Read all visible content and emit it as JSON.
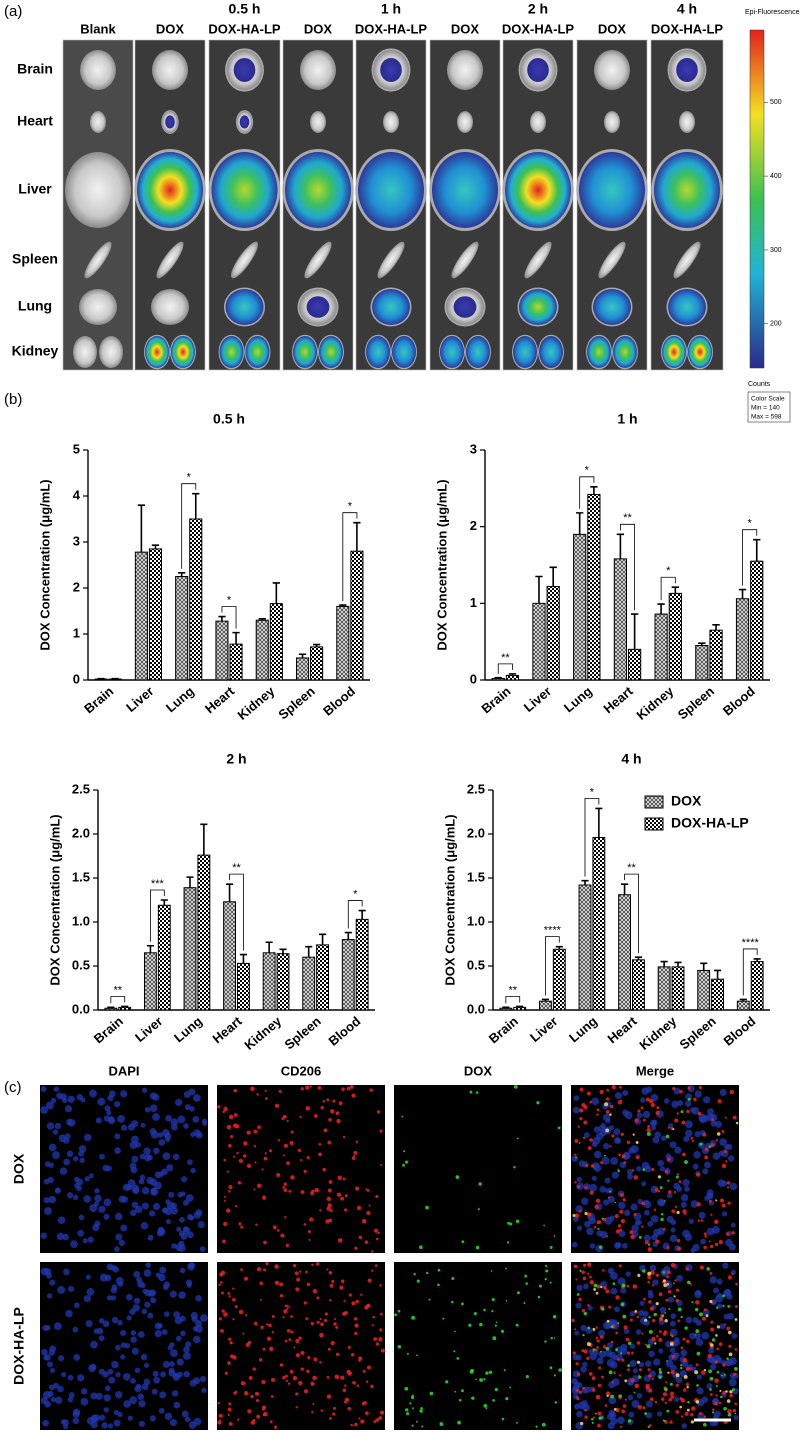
{
  "panel_labels": [
    "(a)",
    "(b)",
    "(c)"
  ],
  "imaging": {
    "time_points": [
      "0.5 h",
      "1 h",
      "2 h",
      "4 h"
    ],
    "groups": [
      "Blank",
      "DOX",
      "DOX-HA-LP",
      "DOX",
      "DOX-HA-LP",
      "DOX",
      "DOX-HA-LP",
      "DOX",
      "DOX-HA-LP"
    ],
    "organs": [
      "Brain",
      "Heart",
      "Liver",
      "Spleen",
      "Lung",
      "Kidney"
    ],
    "colorbar": {
      "title": "Epi-Fluorescence",
      "ticks": [
        200,
        300,
        400,
        500
      ],
      "lim": [
        140,
        598
      ],
      "unit": "Counts",
      "scale_title": "Color Scale",
      "min_label": "Min = 140",
      "max_label": "Max = 598"
    }
  },
  "chart_data": [
    {
      "type": "bar",
      "title": "0.5 h",
      "ylabel": "DOX Concentration (μg/mL)",
      "categories": [
        "Brain",
        "Liver",
        "Lung",
        "Heart",
        "Kidney",
        "Spleen",
        "Blood"
      ],
      "series": [
        {
          "pattern": "crosshatch",
          "color": "#555555",
          "values": [
            0.02,
            2.78,
            2.25,
            1.28,
            1.3,
            0.48,
            1.6
          ],
          "errors": [
            0.01,
            1.02,
            0.08,
            0.1,
            0.03,
            0.08,
            0.03
          ]
        },
        {
          "pattern": "checker",
          "color": "#000000",
          "values": [
            0.02,
            2.85,
            3.5,
            0.78,
            1.66,
            0.72,
            2.8
          ],
          "errors": [
            0.01,
            0.08,
            0.55,
            0.25,
            0.45,
            0.05,
            0.62
          ]
        }
      ],
      "annotations": [
        null,
        null,
        "*",
        "*",
        null,
        null,
        "*"
      ],
      "ylim": [
        0,
        5
      ],
      "yticks": [
        0,
        1,
        2,
        3,
        4,
        5
      ],
      "legend": false
    },
    {
      "type": "bar",
      "title": "1 h",
      "ylabel": "DOX Concentration (μg/mL)",
      "categories": [
        "Brain",
        "Liver",
        "Lung",
        "Heart",
        "Kidney",
        "Spleen",
        "Blood"
      ],
      "series": [
        {
          "pattern": "crosshatch",
          "color": "#555555",
          "values": [
            0.02,
            1.0,
            1.9,
            1.58,
            0.86,
            0.45,
            1.06
          ],
          "errors": [
            0.01,
            0.35,
            0.28,
            0.32,
            0.13,
            0.03,
            0.12
          ]
        },
        {
          "pattern": "checker",
          "color": "#000000",
          "values": [
            0.06,
            1.22,
            2.42,
            0.4,
            1.13,
            0.65,
            1.55
          ],
          "errors": [
            0.02,
            0.25,
            0.1,
            0.46,
            0.08,
            0.07,
            0.28
          ]
        }
      ],
      "annotations": [
        "**",
        null,
        "*",
        "**",
        "*",
        null,
        "*"
      ],
      "ylim": [
        0,
        3
      ],
      "yticks": [
        0,
        1,
        2,
        3
      ],
      "legend": false
    },
    {
      "type": "bar",
      "title": "2 h",
      "ylabel": "DOX Concentration (μg/mL)",
      "categories": [
        "Brain",
        "Liver",
        "Lung",
        "Heart",
        "Kidney",
        "Spleen",
        "Blood"
      ],
      "series": [
        {
          "pattern": "crosshatch",
          "color": "#555555",
          "values": [
            0.02,
            0.65,
            1.39,
            1.23,
            0.65,
            0.6,
            0.8
          ],
          "errors": [
            0.01,
            0.08,
            0.12,
            0.2,
            0.12,
            0.12,
            0.08
          ]
        },
        {
          "pattern": "checker",
          "color": "#000000",
          "values": [
            0.03,
            1.19,
            1.76,
            0.53,
            0.64,
            0.74,
            1.03
          ],
          "errors": [
            0.01,
            0.06,
            0.35,
            0.1,
            0.05,
            0.12,
            0.1
          ]
        }
      ],
      "annotations": [
        "**",
        "***",
        null,
        "**",
        null,
        null,
        "*"
      ],
      "ylim": [
        0,
        2.5
      ],
      "yticks": [
        {
          "value": 0,
          "label": "0.0"
        },
        0.5,
        {
          "value": 1,
          "label": "1.0"
        },
        1.5,
        {
          "value": 2,
          "label": "2.0"
        },
        2.5
      ],
      "legend": false
    },
    {
      "type": "bar",
      "title": "4 h",
      "ylabel": "DOX Concentration (μg/mL)",
      "categories": [
        "Brain",
        "Liver",
        "Lung",
        "Heart",
        "Kidney",
        "Spleen",
        "Blood"
      ],
      "series": [
        {
          "name": "DOX",
          "pattern": "crosshatch",
          "color": "#555555",
          "values": [
            0.02,
            0.1,
            1.42,
            1.31,
            0.49,
            0.45,
            0.1
          ],
          "errors": [
            0.01,
            0.02,
            0.05,
            0.12,
            0.06,
            0.08,
            0.02
          ]
        },
        {
          "name": "DOX-HA-LP",
          "pattern": "checker",
          "color": "#000000",
          "values": [
            0.03,
            0.69,
            1.96,
            0.57,
            0.49,
            0.35,
            0.55
          ],
          "errors": [
            0.01,
            0.03,
            0.33,
            0.03,
            0.05,
            0.1,
            0.03
          ]
        }
      ],
      "annotations": [
        "**",
        "****",
        "*",
        "**",
        null,
        null,
        "****"
      ],
      "ylim": [
        0,
        2.5
      ],
      "yticks": [
        {
          "value": 0,
          "label": "0.0"
        },
        0.5,
        {
          "value": 1,
          "label": "1.0"
        },
        1.5,
        {
          "value": 2,
          "label": "2.0"
        },
        2.5
      ],
      "legend": "upper right"
    }
  ],
  "microscopy": {
    "channels": [
      "DAPI",
      "CD206",
      "DOX",
      "Merge"
    ],
    "groups": [
      "DOX",
      "DOX-HA-LP"
    ]
  }
}
